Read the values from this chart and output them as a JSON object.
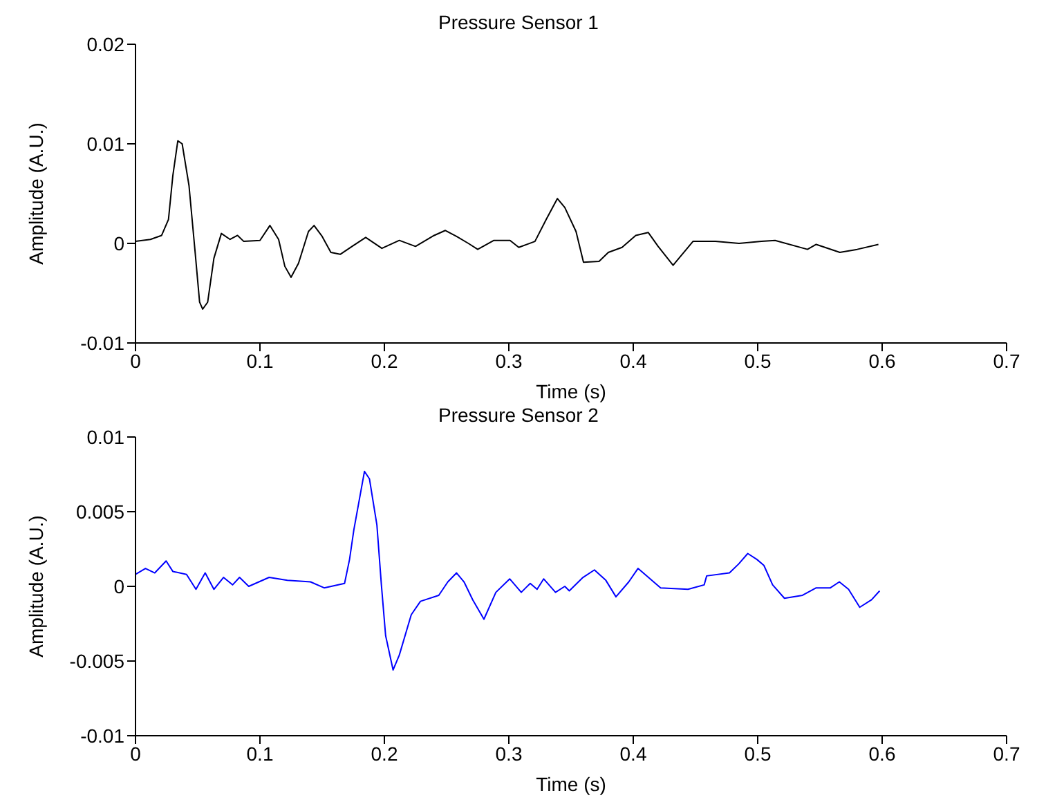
{
  "chart_data": [
    {
      "type": "line",
      "title": "Pressure Sensor 1",
      "xlabel": "Time (s)",
      "ylabel": "Amplitude (A.U.)",
      "xlim": [
        0,
        0.7
      ],
      "xticks": [
        0,
        0.1,
        0.2,
        0.3,
        0.4,
        0.5,
        0.6,
        0.7
      ],
      "ylim": [
        -0.01,
        0.02
      ],
      "yticks": [
        -0.01,
        0,
        0.01,
        0.02
      ],
      "grid": false,
      "legend": false,
      "marker": "none",
      "line_style": "solid",
      "series": [
        {
          "color": "#000000",
          "x": [
            0,
            0.012,
            0.021,
            0.0265,
            0.03,
            0.034,
            0.0375,
            0.043,
            0.048,
            0.0515,
            0.054,
            0.058,
            0.063,
            0.069,
            0.076,
            0.082,
            0.087,
            0.1,
            0.108,
            0.115,
            0.12,
            0.125,
            0.131,
            0.139,
            0.1435,
            0.15,
            0.157,
            0.1645,
            0.174,
            0.185,
            0.198,
            0.212,
            0.225,
            0.24,
            0.249,
            0.258,
            0.2675,
            0.275,
            0.288,
            0.301,
            0.308,
            0.321,
            0.33,
            0.339,
            0.345,
            0.354,
            0.36,
            0.3725,
            0.38,
            0.391,
            0.402,
            0.412,
            0.42,
            0.432,
            0.448,
            0.466,
            0.485,
            0.503,
            0.514,
            0.54,
            0.547,
            0.566,
            0.58,
            0.597
          ],
          "values": [
            0.0002,
            0.0004,
            0.0008,
            0.0024,
            0.0068,
            0.0103,
            0.01,
            0.0058,
            -0.001,
            -0.0059,
            -0.0066,
            -0.0059,
            -0.0015,
            0.001,
            0.0004,
            0.0008,
            0.0002,
            0.0003,
            0.0018,
            0.0004,
            -0.0023,
            -0.0034,
            -0.002,
            0.0012,
            0.0018,
            0.0007,
            -0.0009,
            -0.0011,
            -0.0003,
            0.0006,
            -0.0005,
            0.0003,
            -0.0003,
            0.0008,
            0.0013,
            0.0007,
            0,
            -0.0006,
            0.0003,
            0.0003,
            -0.0004,
            0.0002,
            0.0024,
            0.0045,
            0.0036,
            0.0012,
            -0.0019,
            -0.0018,
            -0.0009,
            -0.0004,
            0.0008,
            0.0011,
            -0.0003,
            -0.0022,
            0.0002,
            0.0002,
            0,
            0.0002,
            0.0003,
            -0.0006,
            -0.0001,
            -0.0009,
            -0.0006,
            -0.0001
          ]
        }
      ]
    },
    {
      "type": "line",
      "title": "Pressure Sensor 2",
      "xlabel": "Time (s)",
      "ylabel": "Amplitude (A.U.)",
      "xlim": [
        0,
        0.7
      ],
      "xticks": [
        0,
        0.1,
        0.2,
        0.3,
        0.4,
        0.5,
        0.6,
        0.7
      ],
      "ylim": [
        -0.01,
        0.01
      ],
      "yticks": [
        -0.01,
        -0.005,
        0,
        0.005,
        0.01
      ],
      "grid": false,
      "legend": false,
      "marker": "none",
      "line_style": "solid",
      "series": [
        {
          "color": "#0000ff",
          "x": [
            0,
            0.008,
            0.0155,
            0.0246,
            0.03,
            0.041,
            0.0486,
            0.056,
            0.063,
            0.0707,
            0.078,
            0.0836,
            0.091,
            0.1074,
            0.122,
            0.1406,
            0.1516,
            0.168,
            0.172,
            0.1755,
            0.184,
            0.188,
            0.194,
            0.1976,
            0.201,
            0.207,
            0.212,
            0.2216,
            0.229,
            0.2437,
            0.251,
            0.258,
            0.264,
            0.271,
            0.28,
            0.2896,
            0.3007,
            0.31,
            0.3172,
            0.3227,
            0.328,
            0.3375,
            0.345,
            0.3486,
            0.3596,
            0.3688,
            0.378,
            0.3861,
            0.3964,
            0.4038,
            0.422,
            0.444,
            0.457,
            0.459,
            0.4773,
            0.4847,
            0.492,
            0.4994,
            0.505,
            0.512,
            0.5215,
            0.536,
            0.547,
            0.5584,
            0.5656,
            0.573,
            0.582,
            0.5915,
            0.598
          ],
          "values": [
            0.0008,
            0.0012,
            0.0009,
            0.0017,
            0.001,
            0.0008,
            -0.0002,
            0.0009,
            -0.0002,
            0.0006,
            0.0001,
            0.0006,
            0,
            0.0006,
            0.0004,
            0.0003,
            -0.0001,
            0.0002,
            0.0018,
            0.0038,
            0.0077,
            0.0072,
            0.0041,
            0.0001,
            -0.0033,
            -0.0056,
            -0.0046,
            -0.0019,
            -0.001,
            -0.0006,
            0.0003,
            0.0009,
            0.0003,
            -0.0009,
            -0.0022,
            -0.0004,
            0.0005,
            -0.0004,
            0.0002,
            -0.0002,
            0.0005,
            -0.0004,
            0,
            -0.0003,
            0.0006,
            0.0011,
            0.0004,
            -0.0007,
            0.0003,
            0.0012,
            -0.0001,
            -0.0002,
            0.0001,
            0.0007,
            0.0009,
            0.0015,
            0.0022,
            0.0018,
            0.0014,
            0.0001,
            -0.0008,
            -0.0006,
            -0.0001,
            -0.0001,
            0.0003,
            -0.0002,
            -0.0014,
            -0.0009,
            -0.0003
          ]
        }
      ]
    }
  ]
}
